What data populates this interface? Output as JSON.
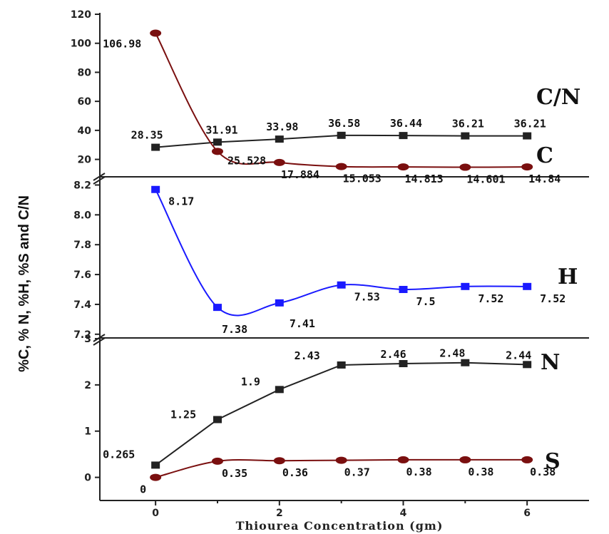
{
  "chart_data": {
    "type": "line",
    "xlabel": "Thiourea Concentration (gm)",
    "ylabel": "%C, % N, %H, %S and C/N",
    "x": [
      0,
      1,
      2,
      3,
      4,
      5,
      6
    ],
    "xticks": [
      0,
      2,
      4,
      6
    ],
    "xlim": [
      -0.9,
      7.0
    ],
    "panels": [
      {
        "ylim": [
          8,
          120
        ],
        "yticks": [
          20,
          40,
          60,
          80,
          100,
          120
        ],
        "series": [
          {
            "name": "C/N",
            "color": "#222222",
            "marker": "square",
            "smooth": false,
            "values": [
              28.35,
              31.91,
              33.98,
              36.58,
              36.44,
              36.21,
              36.21
            ],
            "labels": [
              "28.35",
              "31.91",
              "33.98",
              "36.58",
              "36.44",
              "36.21",
              "36.21"
            ]
          },
          {
            "name": "C",
            "color": "#7a0f0f",
            "marker": "circle",
            "smooth": true,
            "values": [
              106.98,
              25.528,
              17.884,
              15.053,
              14.813,
              14.601,
              14.84
            ],
            "labels": [
              "106.98",
              "25.528",
              "17.884",
              "15.053",
              "14.813",
              "14.601",
              "14.84"
            ]
          }
        ]
      },
      {
        "ylim": [
          7.18,
          8.25
        ],
        "yticks": [
          7.2,
          7.4,
          7.6,
          7.8,
          8.0,
          8.2
        ],
        "yticklabels": [
          "7.2",
          "7.4",
          "7.6",
          "7.8",
          "8.0",
          "8.2"
        ],
        "series": [
          {
            "name": "H",
            "color": "#1a1aff",
            "marker": "square",
            "smooth": true,
            "values": [
              8.17,
              7.38,
              7.41,
              7.53,
              7.5,
              7.52,
              7.52
            ],
            "labels": [
              "8.17",
              "7.38",
              "7.41",
              "7.53",
              "7.5",
              "7.52",
              "7.52"
            ]
          }
        ]
      },
      {
        "ylim": [
          -0.5,
          3.0
        ],
        "yticks": [
          0,
          1,
          2,
          3
        ],
        "series": [
          {
            "name": "N",
            "color": "#222222",
            "marker": "square",
            "smooth": false,
            "values": [
              0.265,
              1.25,
              1.9,
              2.43,
              2.46,
              2.48,
              2.44
            ],
            "labels": [
              "0.265",
              "1.25",
              "1.9",
              "2.43",
              "2.46",
              "2.48",
              "2.44"
            ]
          },
          {
            "name": "S",
            "color": "#7a0f0f",
            "marker": "circle",
            "smooth": true,
            "values": [
              0,
              0.35,
              0.36,
              0.37,
              0.38,
              0.38,
              0.38
            ],
            "labels": [
              "0",
              "0.35",
              "0.36",
              "0.37",
              "0.38",
              "0.38",
              "0.38"
            ]
          }
        ]
      }
    ]
  }
}
